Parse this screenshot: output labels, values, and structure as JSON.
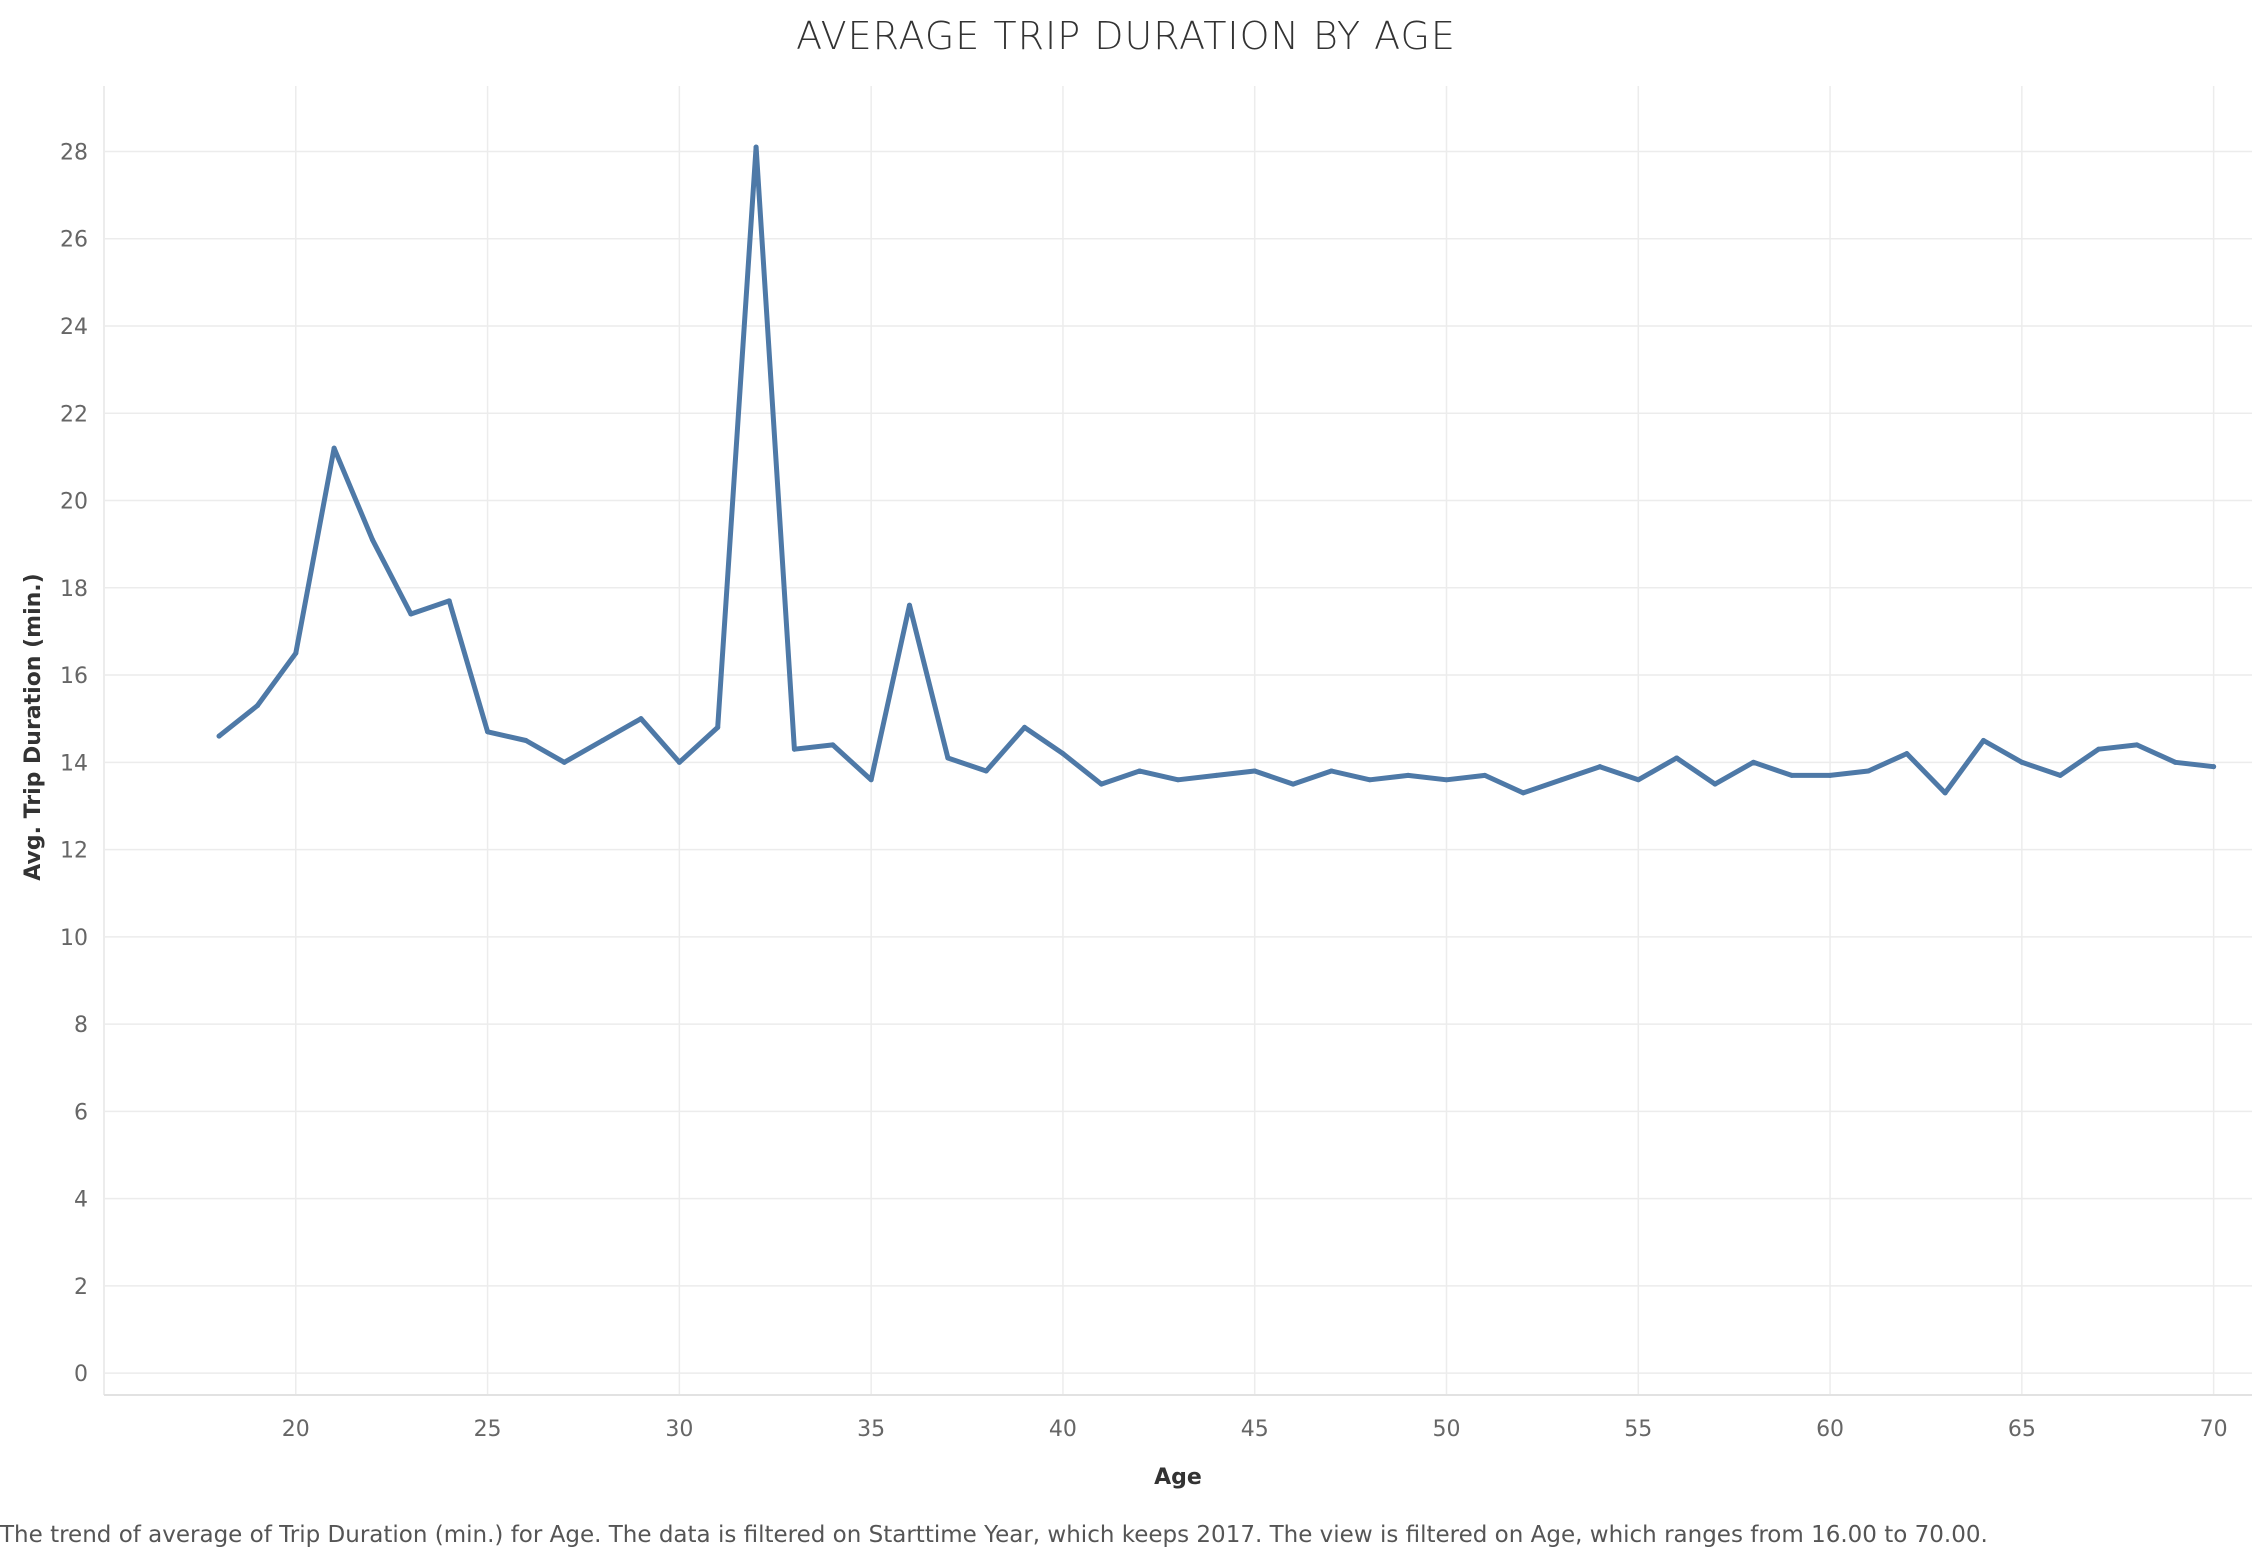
{
  "chart_data": {
    "type": "line",
    "title": "AVERAGE TRIP DURATION BY AGE",
    "xlabel": "Age",
    "ylabel": "Avg. Trip Duration (min.)",
    "xlim": [
      15,
      71
    ],
    "ylim": [
      -0.5,
      29.5
    ],
    "x_ticks": [
      20,
      25,
      30,
      35,
      40,
      45,
      50,
      55,
      60,
      65,
      70
    ],
    "y_ticks": [
      0,
      2,
      4,
      6,
      8,
      10,
      12,
      14,
      16,
      18,
      20,
      22,
      24,
      26,
      28
    ],
    "grid": true,
    "line_color": "#4e79a7",
    "grid_color": "#ececec",
    "series": [
      {
        "x": [
          18,
          19,
          20,
          21,
          22,
          23,
          24,
          25,
          26,
          27,
          28,
          29,
          30,
          31,
          32,
          33,
          34,
          35,
          36,
          37,
          38,
          39,
          40,
          41,
          42,
          43,
          44,
          45,
          46,
          47,
          48,
          49,
          50,
          51,
          52,
          53,
          54,
          55,
          56,
          57,
          58,
          59,
          60,
          61,
          62,
          63,
          64,
          65,
          66,
          67,
          68,
          69,
          70
        ],
        "values": [
          14.6,
          15.3,
          16.5,
          21.2,
          19.1,
          17.4,
          17.7,
          14.7,
          14.5,
          14.0,
          14.5,
          15.0,
          14.0,
          14.8,
          28.1,
          14.3,
          14.4,
          13.6,
          17.6,
          14.1,
          13.8,
          14.8,
          14.2,
          13.5,
          13.8,
          13.6,
          13.7,
          13.8,
          13.5,
          13.8,
          13.6,
          13.7,
          13.6,
          13.7,
          13.3,
          13.6,
          13.9,
          13.6,
          14.1,
          13.5,
          14.0,
          13.7,
          13.7,
          13.8,
          14.2,
          13.3,
          14.5,
          14.0,
          13.7,
          14.3,
          14.4,
          14.0,
          13.9
        ]
      }
    ]
  },
  "caption": "The trend of average of Trip Duration (min.) for Age. The data is filtered on Starttime Year, which keeps 2017. The view is filtered on Age, which ranges from 16.00 to 70.00."
}
